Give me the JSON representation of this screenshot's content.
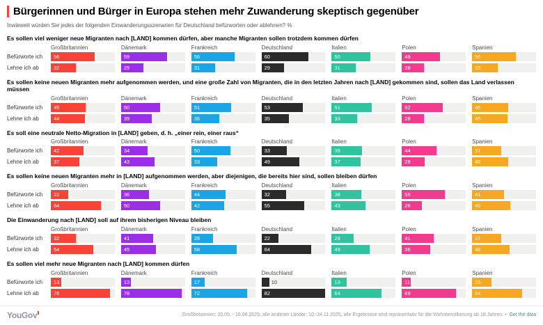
{
  "header": {
    "title": "Bürgerinnen und Bürger in Europa stehen mehr Zuwanderung skeptisch gegenüber",
    "subtitle": "Inwieweit würden Sie jedes der folgenden Einwanderungsszenarien für Deutschland befürworten oder ablehnen? %"
  },
  "colors": {
    "accent_red": "#FA4338",
    "track": "#F0F0EE",
    "bar_label_inside": "#FFFFFF",
    "bar_label_outside": "#333333",
    "link": "#4191B5"
  },
  "chart_data": {
    "type": "bar",
    "orientation": "horizontal",
    "unit": "%",
    "xlim": [
      0,
      82
    ],
    "title": "Bürgerinnen und Bürger in Europa stehen mehr Zuwanderung skeptisch gegenüber",
    "subtitle": "Inwieweit würden Sie jedes der folgenden Einwanderungsszenarien für Deutschland befürworten oder ablehnen? %",
    "countries": [
      "Großbritannien",
      "Dänemark",
      "Frankreich",
      "Deutschland",
      "Italien",
      "Polen",
      "Spanien"
    ],
    "country_colors": [
      "#FA4338",
      "#9B2FE8",
      "#1BA4E6",
      "#2B2B2B",
      "#30C39E",
      "#F23A8E",
      "#F7A823"
    ],
    "row_labels": [
      "Befürworte ich",
      "Lehne ich ab"
    ],
    "sections": [
      {
        "heading": "Es sollen viel weniger neue Migranten nach [LAND] kommen dürfen, aber manche Migranten sollen trotzdem kommen dürfen",
        "series": [
          {
            "name": "Befürworte ich",
            "values": [
              56,
              59,
              56,
              60,
              50,
              49,
              56
            ]
          },
          {
            "name": "Lehne ich ab",
            "values": [
              32,
              29,
              31,
              29,
              31,
              28,
              33
            ]
          }
        ]
      },
      {
        "heading": "Es sollen keine neuen Migranten mehr aufgenommen werden, und eine große Zahl von Migranten, die in den letzten Jahren nach [LAND] gekommen sind, sollen das Land verlassen müssen",
        "series": [
          {
            "name": "Befürworte ich",
            "values": [
              45,
              50,
              51,
              53,
              51,
              52,
              46
            ]
          },
          {
            "name": "Lehne ich ab",
            "values": [
              44,
              39,
              36,
              35,
              33,
              28,
              45
            ]
          }
        ]
      },
      {
        "heading": "Es soll eine neutrale Netto-Migration in [LAND] geben, d. h. „einer rein, einer raus“",
        "series": [
          {
            "name": "Befürworte ich",
            "values": [
              42,
              34,
              50,
              33,
              39,
              44,
              37
            ]
          },
          {
            "name": "Lehne ich ab",
            "values": [
              37,
              43,
              33,
              49,
              37,
              29,
              46
            ]
          }
        ]
      },
      {
        "heading": "Es sollen keine neuen Migranten mehr in [LAND] aufgenommen werden, aber diejenigen, die bereits hier sind, sollen bleiben dürfen",
        "series": [
          {
            "name": "Befürworte ich",
            "values": [
              22,
              36,
              44,
              32,
              38,
              55,
              41
            ]
          },
          {
            "name": "Lehne ich ab",
            "values": [
              64,
              50,
              42,
              55,
              43,
              26,
              49
            ]
          }
        ]
      },
      {
        "heading": "Die Einwanderung nach [LAND] soll auf ihrem bisherigen Niveau bleiben",
        "series": [
          {
            "name": "Befürworte ich",
            "values": [
              32,
              41,
              28,
              22,
              28,
              41,
              37
            ]
          },
          {
            "name": "Lehne ich ab",
            "values": [
              54,
              45,
              58,
              64,
              49,
              36,
              48
            ]
          }
        ]
      },
      {
        "heading": "Es sollen viel mehr neue Migranten nach [LAND] kommen dürfen",
        "series": [
          {
            "name": "Befürworte ich",
            "values": [
              13,
              13,
              17,
              10,
              19,
              11,
              25
            ]
          },
          {
            "name": "Lehne ich ab",
            "values": [
              76,
              78,
              72,
              82,
              64,
              69,
              64
            ]
          }
        ]
      }
    ]
  },
  "footer": {
    "logo": "YouGov",
    "note": "Großbritannien: 20.05. - 16.06.2025, alle anderen Länder: 10.-24.11.2025, alle Ergebnisse sind repräsentativ für die Wohnbevölkerung ab 18 Jahren",
    "separator": "•",
    "link": "Get the data"
  }
}
